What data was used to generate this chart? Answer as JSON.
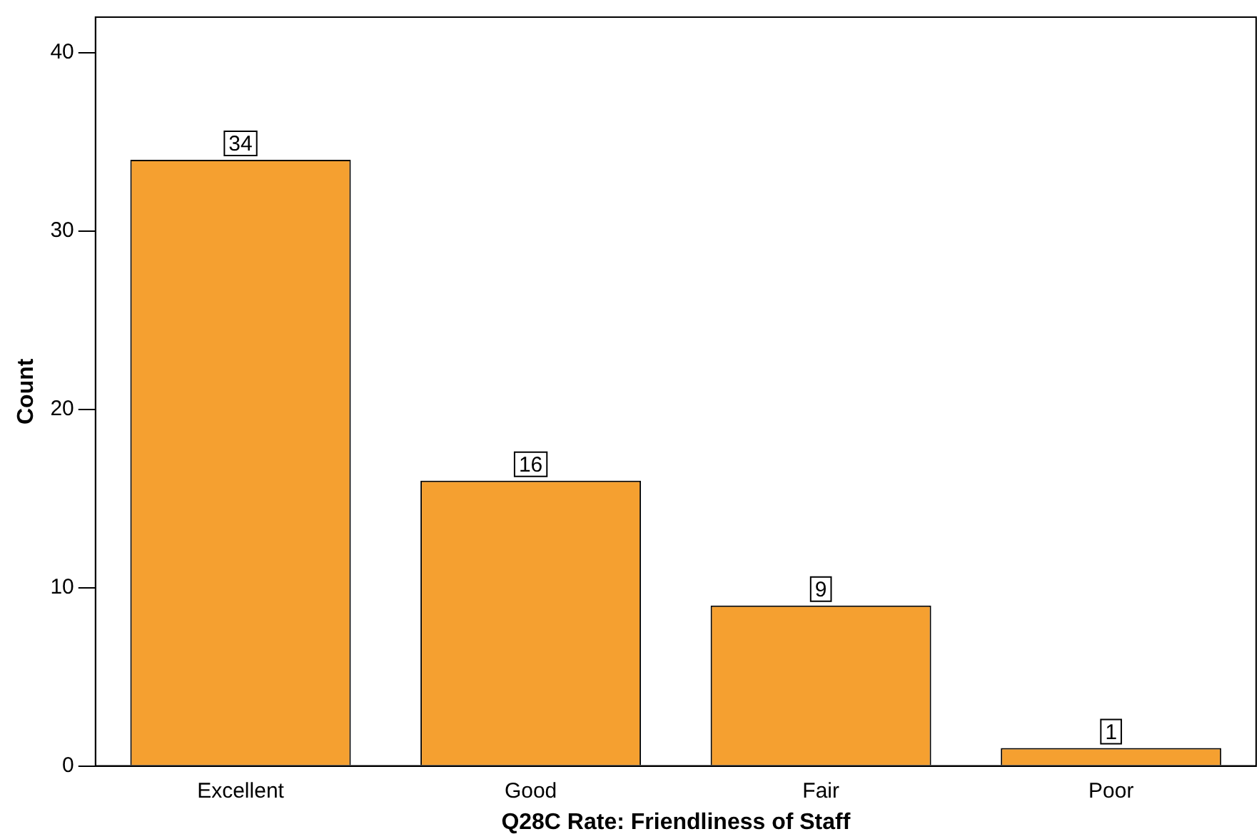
{
  "chart_data": {
    "type": "bar",
    "xlabel": "Q28C Rate: Friendliness of Staff",
    "ylabel": "Count",
    "categories": [
      "Excellent",
      "Good",
      "Fair",
      "Poor"
    ],
    "values": [
      34,
      16,
      9,
      1
    ],
    "color": "#f5a030",
    "ylim": [
      0,
      42
    ],
    "yticks": [
      0,
      10,
      20,
      30,
      40
    ],
    "grid": false,
    "legend": false,
    "data_labels": true
  }
}
